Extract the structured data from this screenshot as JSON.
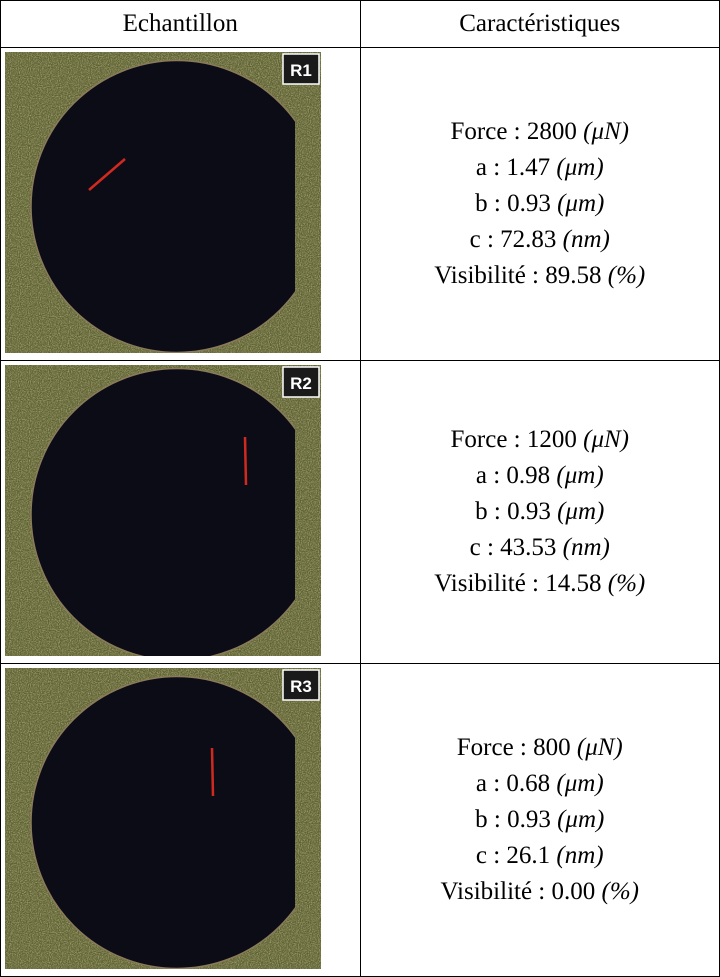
{
  "table": {
    "header": [
      "Echantillon",
      "Caractéristiques"
    ],
    "rows": [
      {
        "sample": "R1",
        "lines": [
          {
            "label": "Force : 2800",
            "unit": "(μN)"
          },
          {
            "label": "a : 1.47",
            "unit": "(μm)"
          },
          {
            "label": "b : 0.93",
            "unit": "(μm)"
          },
          {
            "label": "c : 72.83",
            "unit": "(nm)"
          },
          {
            "label": "Visibilité : 89.58",
            "unit": "(%)"
          }
        ]
      },
      {
        "sample": "R2",
        "lines": [
          {
            "label": "Force : 1200",
            "unit": "(μN)"
          },
          {
            "label": "a : 0.98",
            "unit": "(μm)"
          },
          {
            "label": "b : 0.93",
            "unit": "(μm)"
          },
          {
            "label": "c : 43.53",
            "unit": "(nm)"
          },
          {
            "label": "Visibilité : 14.58",
            "unit": "(%)"
          }
        ]
      },
      {
        "sample": "R3",
        "lines": [
          {
            "label": "Force : 800",
            "unit": "(μN)"
          },
          {
            "label": "a : 0.68",
            "unit": "(μm)"
          },
          {
            "label": "b : 0.93",
            "unit": "(μm)"
          },
          {
            "label": "c : 26.1",
            "unit": "(nm)"
          },
          {
            "label": "Visibilité : 0.00",
            "unit": "(%)"
          }
        ]
      }
    ]
  }
}
